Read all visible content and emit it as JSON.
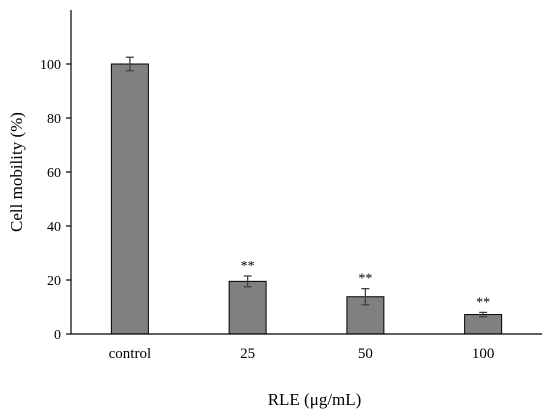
{
  "chart_data": {
    "type": "bar",
    "categories": [
      "control",
      "25",
      "50",
      "100"
    ],
    "values": [
      100,
      19.5,
      13.8,
      7.2
    ],
    "errors": [
      2.5,
      2.0,
      3.0,
      0.8
    ],
    "significance": [
      "",
      "**",
      "**",
      "**"
    ],
    "xlabel": "RLE  (μg/mL)",
    "ylabel": "Cell mobility (%)",
    "ylim": [
      0,
      120
    ],
    "yticks": [
      "0",
      "20",
      "40",
      "60",
      "80",
      "100"
    ],
    "grid": false,
    "bar_color": "#808080",
    "bar_stroke": "#000000",
    "axis_color": "#000000"
  }
}
